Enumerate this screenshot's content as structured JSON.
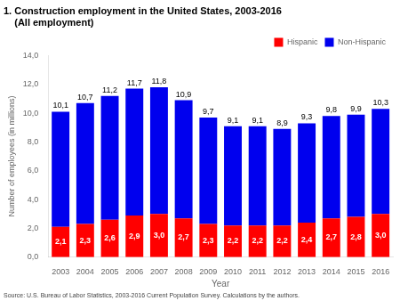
{
  "chart_data": {
    "type": "bar",
    "title": [
      "1. Construction employment in the United States, 2003-2016",
      "    (All employment)"
    ],
    "xlabel": "Year",
    "ylabel": "Number of employees (in millions)",
    "categories": [
      "2003",
      "2004",
      "2005",
      "2006",
      "2007",
      "2008",
      "2009",
      "2010",
      "2011",
      "2012",
      "2013",
      "2014",
      "2015",
      "2016"
    ],
    "series": [
      {
        "name": "Hispanic",
        "color": "#ff0000",
        "values": [
          2.1,
          2.3,
          2.6,
          2.9,
          3.0,
          2.7,
          2.3,
          2.2,
          2.2,
          2.2,
          2.4,
          2.7,
          2.8,
          3.0
        ],
        "value_labels": [
          "2,1",
          "2,3",
          "2,6",
          "2,9",
          "3,0",
          "2,7",
          "2,3",
          "2,2",
          "2,2",
          "2,2",
          "2,4",
          "2,7",
          "2,8",
          "3,0"
        ],
        "data_labels": true
      },
      {
        "name": "Non-Hispanic",
        "color": "#0000ee",
        "values": [
          8.0,
          8.4,
          8.6,
          8.8,
          8.8,
          8.2,
          7.4,
          6.9,
          6.9,
          6.7,
          6.9,
          7.1,
          7.1,
          7.3
        ]
      }
    ],
    "stacked": true,
    "ylim": [
      0,
      14
    ],
    "yticks": [
      {
        "value": 0,
        "label": "0,0"
      },
      {
        "value": 2,
        "label": "2,0"
      },
      {
        "value": 4,
        "label": "4,0"
      },
      {
        "value": 6,
        "label": "6,0"
      },
      {
        "value": 8,
        "label": "8,0"
      },
      {
        "value": 10,
        "label": "10,0"
      },
      {
        "value": 12,
        "label": "12,0"
      },
      {
        "value": 14,
        "label": "14,0"
      }
    ],
    "grid": false,
    "legend": "upper right",
    "annotations": [
      {
        "x": "2003",
        "y": 10.1,
        "text": "10,1"
      },
      {
        "x": "2004",
        "y": 10.7,
        "text": "10,7"
      },
      {
        "x": "2005",
        "y": 11.2,
        "text": "11,2"
      },
      {
        "x": "2006",
        "y": 11.7,
        "text": "11,7"
      },
      {
        "x": "2007",
        "y": 11.8,
        "text": "11,8"
      },
      {
        "x": "2008",
        "y": 10.9,
        "text": "10,9"
      },
      {
        "x": "2009",
        "y": 9.7,
        "text": "9,7"
      },
      {
        "x": "2010",
        "y": 9.1,
        "text": "9,1"
      },
      {
        "x": "2011",
        "y": 9.1,
        "text": "9,1"
      },
      {
        "x": "2012",
        "y": 8.9,
        "text": "8,9"
      },
      {
        "x": "2013",
        "y": 9.3,
        "text": "9,3"
      },
      {
        "x": "2014",
        "y": 9.8,
        "text": "9,8"
      },
      {
        "x": "2015",
        "y": 9.9,
        "text": "9,9"
      },
      {
        "x": "2016",
        "y": 10.3,
        "text": "10,3"
      }
    ],
    "source": "Source: U.S. Bureau of Labor Statistics, 2003-2016 Current Population Survey. Calculations by the authors."
  }
}
